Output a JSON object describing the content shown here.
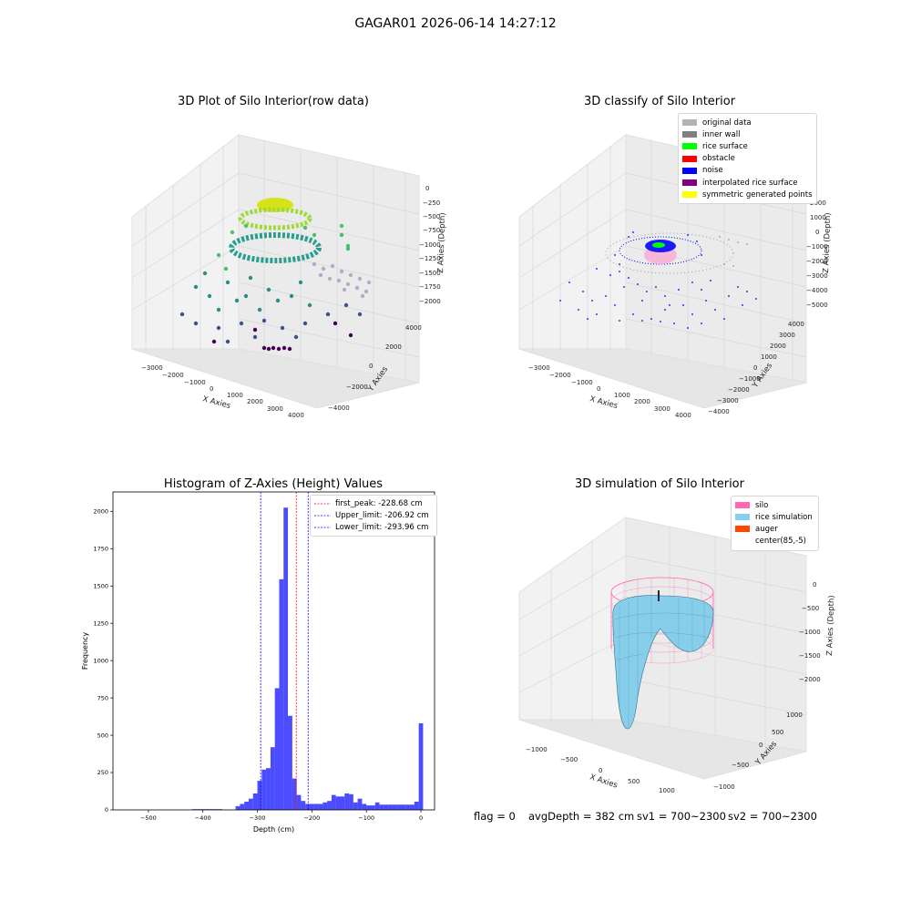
{
  "suptitle": "GAGAR01 2026-06-14 14:27:12",
  "bottom_status": {
    "flag": "flag = 0",
    "avg_depth": "avgDepth = 382 cm",
    "sv1": "sv1 = 700~2300",
    "sv2": "sv2 = 700~2300"
  },
  "panel1": {
    "title": "3D Plot of Silo Interior(row data)",
    "xlabel": "X Axies",
    "ylabel": "Y Axies",
    "zlabel": "Z Axies (Depth)",
    "xticks": [
      "−3000",
      "−2000",
      "−1000",
      "0",
      "1000",
      "2000",
      "3000",
      "4000"
    ],
    "yticks": [
      "−4000",
      "−2000",
      "0",
      "2000",
      "4000"
    ],
    "zticks": [
      "0",
      "−250",
      "−500",
      "−750",
      "−1000",
      "−1250",
      "−1500",
      "−1750",
      "−2000"
    ]
  },
  "panel2": {
    "title": "3D classify of Silo Interior",
    "xlabel": "X Axies",
    "ylabel": "Y Axies",
    "zlabel": "Z Axies (Depth)",
    "xticks": [
      "−3000",
      "−2000",
      "−1000",
      "0",
      "1000",
      "2000",
      "3000",
      "4000"
    ],
    "yticks": [
      "−4000",
      "−3000",
      "−2000",
      "−1000",
      "0",
      "1000",
      "2000",
      "3000",
      "4000"
    ],
    "zticks": [
      "2000",
      "1000",
      "0",
      "−1000",
      "−2000",
      "−3000",
      "−4000",
      "−5000"
    ],
    "legend": [
      {
        "label": "original data",
        "color": "#b3b3b3"
      },
      {
        "label": "inner wall",
        "color": "#808080"
      },
      {
        "label": "rice surface",
        "color": "#00ff00"
      },
      {
        "label": "obstacle",
        "color": "#ff0000"
      },
      {
        "label": "noise",
        "color": "#0000ff"
      },
      {
        "label": "interpolated rice surface",
        "color": "#800080"
      },
      {
        "label": "symmetric generated points",
        "color": "#ffff00"
      }
    ]
  },
  "panel4": {
    "title": "3D simulation of Silo Interior",
    "xlabel": "X Axies",
    "ylabel": "Y Axies",
    "zlabel": "Z Axies (Depth)",
    "xticks": [
      "−1000",
      "−500",
      "0",
      "500",
      "1000"
    ],
    "yticks": [
      "−1000",
      "−500",
      "0",
      "500",
      "1000"
    ],
    "zticks": [
      "0",
      "−500",
      "−1000",
      "−1500",
      "−2000"
    ],
    "legend": [
      {
        "label": "silo",
        "color": "#ff69b4"
      },
      {
        "label": "rice simulation",
        "color": "#87ceeb"
      },
      {
        "label": "auger",
        "color": "#ff4500"
      },
      {
        "label": "center(85,-5)",
        "color": "#ffffff"
      }
    ]
  },
  "chart_data": [
    {
      "type": "bar",
      "title": "Histogram of Z-Axies (Height) Values",
      "xlabel": "Depth (cm)",
      "ylabel": "Frequency",
      "xlim": [
        -565,
        25
      ],
      "ylim": [
        0,
        2130
      ],
      "xticks": [
        -500,
        -400,
        -300,
        -200,
        -100,
        0
      ],
      "yticks": [
        0,
        250,
        500,
        750,
        1000,
        1250,
        1500,
        1750,
        2000
      ],
      "bin_width": 8,
      "bin_left": [
        -420,
        -412,
        -404,
        -396,
        -388,
        -380,
        -372,
        -340,
        -332,
        -324,
        -316,
        -308,
        -300,
        -292,
        -284,
        -276,
        -268,
        -260,
        -252,
        -244,
        -236,
        -228,
        -220,
        -212,
        -204,
        -196,
        -188,
        -180,
        -172,
        -164,
        -156,
        -148,
        -140,
        -132,
        -124,
        -116,
        -108,
        -100,
        -92,
        -84,
        -76,
        -68,
        -60,
        -52,
        -44,
        -36,
        -28,
        -20,
        -12,
        -4
      ],
      "values": [
        5,
        5,
        5,
        5,
        5,
        5,
        5,
        25,
        40,
        55,
        75,
        110,
        195,
        270,
        280,
        420,
        815,
        1545,
        2025,
        630,
        210,
        100,
        60,
        40,
        40,
        40,
        40,
        50,
        60,
        100,
        90,
        90,
        110,
        105,
        50,
        75,
        40,
        30,
        30,
        50,
        35,
        35,
        35,
        35,
        35,
        35,
        35,
        35,
        55,
        580
      ],
      "lines": [
        {
          "label": "first_peak: -228.68 cm",
          "x": -228.68,
          "color": "#ff0000"
        },
        {
          "label": "Upper_limit: -206.92 cm",
          "x": -206.92,
          "color": "#0000ff"
        },
        {
          "label": "Lower_limit: -293.96 cm",
          "x": -293.96,
          "color": "#0000ff"
        }
      ]
    }
  ]
}
